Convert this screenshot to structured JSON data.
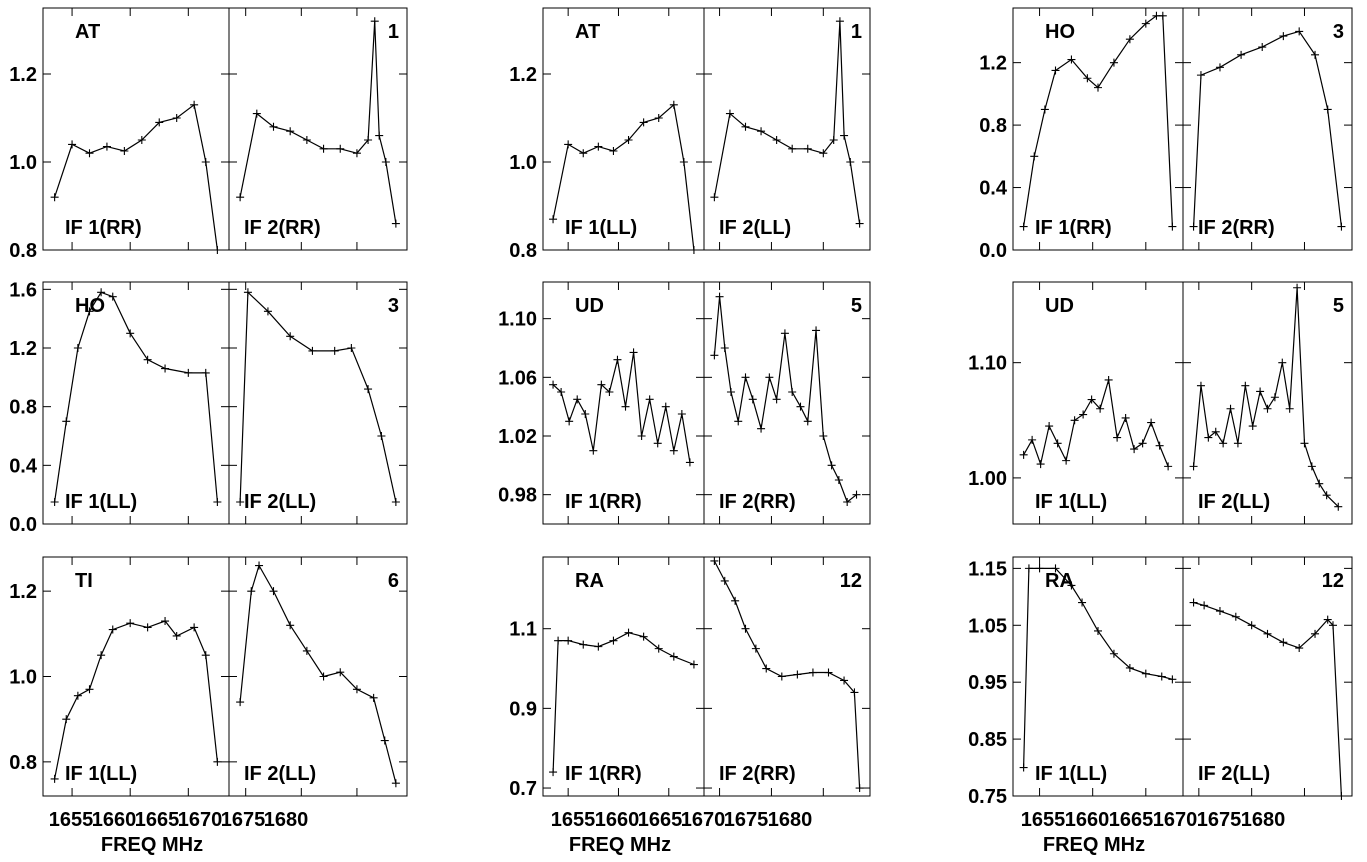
{
  "chart_data": {
    "type": "line",
    "xlabel": "FREQ MHz",
    "x_tick_labels": [
      "1655",
      "1660",
      "1665",
      "1670",
      "1675",
      "1680"
    ],
    "xlim_if1": [
      1652.5,
      1668.5
    ],
    "xlim_if2": [
      1668.5,
      1684.5
    ],
    "series_color": "#000000",
    "grid": false,
    "panels": [
      {
        "id": "r0c0",
        "antenna": "AT",
        "number": "1",
        "if1_label": "IF 1(RR)",
        "if2_label": "IF 2(RR)",
        "ylim": [
          0.8,
          1.35
        ],
        "yticks": [
          0.8,
          1.0,
          1.2
        ],
        "ytick_labels": [
          "0.8",
          "1.0",
          "1.2"
        ],
        "if1": {
          "x": [
            1653.5,
            1655,
            1656.5,
            1658,
            1659.5,
            1661,
            1662.5,
            1664,
            1665.5,
            1666.5,
            1667.5
          ],
          "y": [
            0.92,
            1.04,
            1.02,
            1.035,
            1.025,
            1.05,
            1.09,
            1.1,
            1.13,
            1.0,
            0.8
          ]
        },
        "if2": {
          "x": [
            1669.5,
            1671,
            1672.5,
            1674,
            1675.5,
            1677,
            1678.5,
            1680,
            1681,
            1681.6,
            1682,
            1682.6,
            1683.5
          ],
          "y": [
            0.92,
            1.11,
            1.08,
            1.07,
            1.05,
            1.03,
            1.03,
            1.02,
            1.05,
            1.32,
            1.06,
            1.0,
            0.86
          ]
        }
      },
      {
        "id": "r0c1",
        "antenna": "AT",
        "number": "1",
        "if1_label": "IF 1(LL)",
        "if2_label": "IF 2(LL)",
        "ylim": [
          0.8,
          1.35
        ],
        "yticks": [
          0.8,
          1.0,
          1.2
        ],
        "ytick_labels": [
          "0.8",
          "1.0",
          "1.2"
        ],
        "if1": {
          "x": [
            1653.5,
            1655,
            1656.5,
            1658,
            1659.5,
            1661,
            1662.5,
            1664,
            1665.5,
            1666.5,
            1667.5
          ],
          "y": [
            0.87,
            1.04,
            1.02,
            1.035,
            1.025,
            1.05,
            1.09,
            1.1,
            1.13,
            1.0,
            0.8
          ]
        },
        "if2": {
          "x": [
            1669.5,
            1671,
            1672.5,
            1674,
            1675.5,
            1677,
            1678.5,
            1680,
            1681,
            1681.6,
            1682,
            1682.6,
            1683.5
          ],
          "y": [
            0.92,
            1.11,
            1.08,
            1.07,
            1.05,
            1.03,
            1.03,
            1.02,
            1.05,
            1.32,
            1.06,
            1.0,
            0.86
          ]
        }
      },
      {
        "id": "r0c2",
        "antenna": "HO",
        "number": "3",
        "if1_label": "IF 1(RR)",
        "if2_label": "IF 2(RR)",
        "ylim": [
          0.0,
          1.55
        ],
        "yticks": [
          0.0,
          0.4,
          0.8,
          1.2
        ],
        "ytick_labels": [
          "0.0",
          "0.4",
          "0.8",
          "1.2"
        ],
        "if1": {
          "x": [
            1653.5,
            1654.5,
            1655.5,
            1656.5,
            1658,
            1659.5,
            1660.5,
            1662,
            1663.5,
            1665,
            1666,
            1666.6,
            1667.5
          ],
          "y": [
            0.15,
            0.6,
            0.9,
            1.15,
            1.22,
            1.1,
            1.04,
            1.2,
            1.35,
            1.45,
            1.5,
            1.5,
            0.15
          ]
        },
        "if2": {
          "x": [
            1669.5,
            1670.2,
            1672,
            1674,
            1676,
            1678,
            1679.5,
            1681,
            1682.2,
            1683.5
          ],
          "y": [
            0.15,
            1.12,
            1.17,
            1.25,
            1.3,
            1.37,
            1.4,
            1.25,
            0.9,
            0.15
          ]
        }
      },
      {
        "id": "r1c0",
        "antenna": "HO",
        "number": "3",
        "if1_label": "IF 1(LL)",
        "if2_label": "IF 2(LL)",
        "ylim": [
          0.0,
          1.65
        ],
        "yticks": [
          0.0,
          0.4,
          0.8,
          1.2,
          1.6
        ],
        "ytick_labels": [
          "0.0",
          "0.4",
          "0.8",
          "1.2",
          "1.6"
        ],
        "if1": {
          "x": [
            1653.5,
            1654.5,
            1655.5,
            1656.5,
            1657.5,
            1658.5,
            1660,
            1661.5,
            1663,
            1665,
            1666.5,
            1667.5
          ],
          "y": [
            0.15,
            0.7,
            1.2,
            1.45,
            1.58,
            1.55,
            1.3,
            1.12,
            1.06,
            1.03,
            1.03,
            0.15
          ]
        },
        "if2": {
          "x": [
            1669.5,
            1670.2,
            1672,
            1674,
            1676,
            1678,
            1679.5,
            1681,
            1682.2,
            1683.5
          ],
          "y": [
            0.15,
            1.58,
            1.45,
            1.28,
            1.18,
            1.18,
            1.2,
            0.92,
            0.6,
            0.15
          ]
        }
      },
      {
        "id": "r1c1",
        "antenna": "UD",
        "number": "5",
        "if1_label": "IF 1(RR)",
        "if2_label": "IF 2(RR)",
        "ylim": [
          0.96,
          1.125
        ],
        "yticks": [
          0.98,
          1.02,
          1.06,
          1.1
        ],
        "ytick_labels": [
          "0.98",
          "1.02",
          "1.06",
          "1.10"
        ],
        "if1": {
          "x": [
            1653.5,
            1654.3,
            1655.1,
            1655.9,
            1656.7,
            1657.5,
            1658.3,
            1659.1,
            1659.9,
            1660.7,
            1661.5,
            1662.3,
            1663.1,
            1663.9,
            1664.7,
            1665.5,
            1666.3,
            1667.1
          ],
          "y": [
            1.055,
            1.05,
            1.03,
            1.045,
            1.035,
            1.01,
            1.055,
            1.05,
            1.072,
            1.04,
            1.077,
            1.02,
            1.045,
            1.015,
            1.04,
            1.01,
            1.035,
            1.002
          ]
        },
        "if2": {
          "x": [
            1669.5,
            1670,
            1670.5,
            1671.1,
            1671.8,
            1672.5,
            1673.2,
            1674,
            1674.8,
            1675.5,
            1676.3,
            1677,
            1677.8,
            1678.5,
            1679.3,
            1680,
            1680.8,
            1681.5,
            1682.3,
            1683.2
          ],
          "y": [
            1.075,
            1.115,
            1.08,
            1.05,
            1.03,
            1.06,
            1.045,
            1.025,
            1.06,
            1.045,
            1.09,
            1.05,
            1.04,
            1.03,
            1.092,
            1.02,
            1.0,
            0.99,
            0.975,
            0.98
          ]
        }
      },
      {
        "id": "r1c2",
        "antenna": "UD",
        "number": "5",
        "if1_label": "IF 1(LL)",
        "if2_label": "IF 2(LL)",
        "ylim": [
          0.96,
          1.17
        ],
        "yticks": [
          1.0,
          1.1
        ],
        "ytick_labels": [
          "1.00",
          "1.10"
        ],
        "if1": {
          "x": [
            1653.5,
            1654.3,
            1655.1,
            1655.9,
            1656.7,
            1657.5,
            1658.3,
            1659.1,
            1659.9,
            1660.7,
            1661.5,
            1662.3,
            1663.1,
            1663.9,
            1664.7,
            1665.5,
            1666.3,
            1667.1
          ],
          "y": [
            1.02,
            1.033,
            1.012,
            1.045,
            1.03,
            1.015,
            1.05,
            1.055,
            1.068,
            1.06,
            1.085,
            1.035,
            1.052,
            1.025,
            1.03,
            1.048,
            1.028,
            1.01
          ]
        },
        "if2": {
          "x": [
            1669.5,
            1670.2,
            1670.9,
            1671.6,
            1672.3,
            1673,
            1673.7,
            1674.4,
            1675.1,
            1675.8,
            1676.5,
            1677.2,
            1677.9,
            1678.6,
            1679.3,
            1680,
            1680.7,
            1681.4,
            1682.1,
            1683.2
          ],
          "y": [
            1.01,
            1.08,
            1.035,
            1.04,
            1.03,
            1.06,
            1.03,
            1.08,
            1.045,
            1.075,
            1.06,
            1.07,
            1.1,
            1.06,
            1.165,
            1.03,
            1.01,
            0.995,
            0.985,
            0.975
          ]
        }
      },
      {
        "id": "r2c0",
        "antenna": "TI",
        "number": "6",
        "if1_label": "IF 1(LL)",
        "if2_label": "IF 2(LL)",
        "ylim": [
          0.72,
          1.28
        ],
        "yticks": [
          0.8,
          1.0,
          1.2
        ],
        "ytick_labels": [
          "0.8",
          "1.0",
          "1.2"
        ],
        "if1": {
          "x": [
            1653.5,
            1654.5,
            1655.5,
            1656.5,
            1657.5,
            1658.5,
            1660,
            1661.5,
            1663,
            1664,
            1665.5,
            1666.5,
            1667.5
          ],
          "y": [
            0.76,
            0.9,
            0.955,
            0.97,
            1.05,
            1.11,
            1.125,
            1.115,
            1.13,
            1.095,
            1.115,
            1.05,
            0.8
          ]
        },
        "if2": {
          "x": [
            1669.5,
            1670.5,
            1671.2,
            1672.5,
            1674,
            1675.5,
            1677,
            1678.5,
            1680,
            1681.5,
            1682.5,
            1683.5
          ],
          "y": [
            0.94,
            1.2,
            1.26,
            1.2,
            1.12,
            1.06,
            1.0,
            1.01,
            0.97,
            0.95,
            0.85,
            0.75
          ]
        }
      },
      {
        "id": "r2c1",
        "antenna": "RA",
        "number": "12",
        "if1_label": "IF 1(RR)",
        "if2_label": "IF 2(RR)",
        "ylim": [
          0.68,
          1.28
        ],
        "yticks": [
          0.7,
          0.9,
          1.1
        ],
        "ytick_labels": [
          "0.7",
          "0.9",
          "1.1"
        ],
        "if1": {
          "x": [
            1653.5,
            1654,
            1655,
            1656.5,
            1658,
            1659.5,
            1661,
            1662.5,
            1664,
            1665.5,
            1667.5
          ],
          "y": [
            0.74,
            1.07,
            1.07,
            1.06,
            1.055,
            1.07,
            1.09,
            1.08,
            1.05,
            1.03,
            1.01
          ]
        },
        "if2": {
          "x": [
            1669.5,
            1670.5,
            1671.5,
            1672.5,
            1673.5,
            1674.5,
            1676,
            1677.5,
            1679,
            1680.5,
            1682,
            1683,
            1683.5
          ],
          "y": [
            1.27,
            1.22,
            1.17,
            1.1,
            1.05,
            1.0,
            0.98,
            0.985,
            0.99,
            0.99,
            0.97,
            0.94,
            0.7
          ]
        }
      },
      {
        "id": "r2c2",
        "antenna": "RA",
        "number": "12",
        "if1_label": "IF 1(LL)",
        "if2_label": "IF 2(LL)",
        "ylim": [
          0.75,
          1.17
        ],
        "yticks": [
          0.75,
          0.85,
          0.95,
          1.05,
          1.15
        ],
        "ytick_labels": [
          "0.75",
          "0.85",
          "0.95",
          "1.05",
          "1.15"
        ],
        "if1": {
          "x": [
            1653.5,
            1654,
            1655,
            1656.5,
            1658,
            1659,
            1660.5,
            1662,
            1663.5,
            1665,
            1666.5,
            1667.5
          ],
          "y": [
            0.8,
            1.15,
            1.15,
            1.15,
            1.12,
            1.09,
            1.04,
            1.0,
            0.975,
            0.965,
            0.96,
            0.955
          ]
        },
        "if2": {
          "x": [
            1669.5,
            1670.5,
            1672,
            1673.5,
            1675,
            1676.5,
            1678,
            1679.5,
            1681,
            1682.2,
            1682.7,
            1683.5
          ],
          "y": [
            1.09,
            1.085,
            1.075,
            1.065,
            1.05,
            1.035,
            1.02,
            1.01,
            1.035,
            1.06,
            1.05,
            0.75
          ]
        }
      }
    ]
  }
}
